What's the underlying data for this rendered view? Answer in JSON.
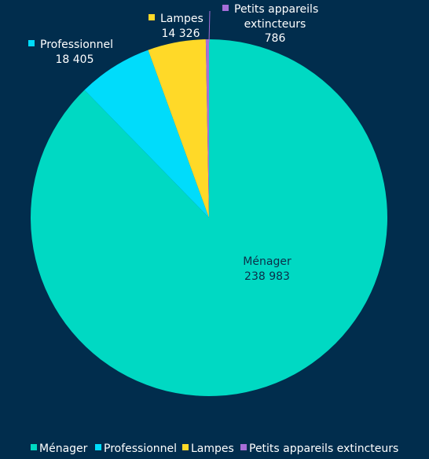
{
  "chart_data": {
    "type": "pie",
    "title": "",
    "categories": [
      "Ménager",
      "Professionnel",
      "Lampes",
      "Petits appareils extincteurs"
    ],
    "values": [
      238983,
      18405,
      14326,
      786
    ],
    "value_labels": [
      "238 983",
      "18 405",
      "14 326",
      "786"
    ],
    "colors": [
      "#00d9c3",
      "#00dcfb",
      "#ffd928",
      "#a66ed8"
    ],
    "legend": {
      "position": "bottom",
      "items": [
        "Ménager",
        "Professionnel",
        "Lampes",
        "Petits appareils extincteurs"
      ]
    },
    "data_labels": {
      "Ménager": {
        "name": "Ménager",
        "value": "238 983"
      },
      "Professionnel": {
        "name": "Professionnel",
        "value": "18 405"
      },
      "Lampes": {
        "name": "Lampes",
        "value": "14 326"
      },
      "Petits": {
        "name_line1": "Petits appareils",
        "name_line2": "extincteurs",
        "value": "786"
      }
    }
  }
}
